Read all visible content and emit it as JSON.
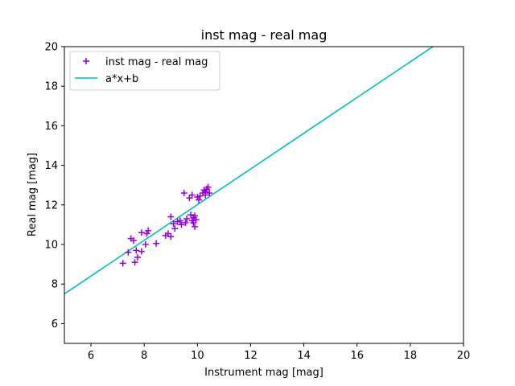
{
  "chart_data": {
    "type": "scatter",
    "title": "inst mag - real mag",
    "xlabel": "Instrument mag [mag]",
    "ylabel": "Real mag [mag]",
    "xlim": [
      5,
      20
    ],
    "ylim": [
      5,
      20
    ],
    "xticks": [
      6,
      8,
      10,
      12,
      14,
      16,
      18,
      20
    ],
    "yticks": [
      6,
      8,
      10,
      12,
      14,
      16,
      18,
      20
    ],
    "grid": false,
    "legend_position": "top-left",
    "series": [
      {
        "name": "inst mag - real mag",
        "kind": "scatter",
        "marker": "plus",
        "color": "#9400d3",
        "points": [
          [
            7.2,
            9.05
          ],
          [
            7.4,
            9.6
          ],
          [
            7.5,
            10.3
          ],
          [
            7.6,
            10.2
          ],
          [
            7.65,
            9.1
          ],
          [
            7.7,
            9.7
          ],
          [
            7.75,
            9.35
          ],
          [
            7.9,
            10.6
          ],
          [
            7.9,
            9.65
          ],
          [
            8.05,
            10.0
          ],
          [
            8.1,
            10.55
          ],
          [
            8.15,
            10.7
          ],
          [
            8.45,
            10.05
          ],
          [
            8.8,
            10.45
          ],
          [
            8.9,
            10.55
          ],
          [
            9.0,
            11.4
          ],
          [
            9.0,
            10.4
          ],
          [
            9.1,
            11.05
          ],
          [
            9.15,
            10.8
          ],
          [
            9.25,
            11.15
          ],
          [
            9.35,
            11.2
          ],
          [
            9.4,
            11.0
          ],
          [
            9.5,
            12.6
          ],
          [
            9.55,
            11.1
          ],
          [
            9.6,
            11.3
          ],
          [
            9.7,
            12.35
          ],
          [
            9.75,
            11.5
          ],
          [
            9.8,
            11.2
          ],
          [
            9.8,
            12.5
          ],
          [
            9.85,
            11.35
          ],
          [
            9.85,
            11.1
          ],
          [
            9.9,
            11.45
          ],
          [
            9.9,
            10.9
          ],
          [
            9.95,
            11.25
          ],
          [
            10.0,
            12.4
          ],
          [
            10.05,
            12.25
          ],
          [
            10.1,
            12.45
          ],
          [
            10.2,
            12.6
          ],
          [
            10.25,
            12.75
          ],
          [
            10.3,
            12.5
          ],
          [
            10.35,
            12.8
          ],
          [
            10.4,
            12.9
          ],
          [
            10.45,
            12.6
          ],
          [
            10.3,
            12.65
          ]
        ]
      },
      {
        "name": "a*x+b",
        "kind": "line",
        "color": "#00bfbf",
        "x": [
          5,
          18.85
        ],
        "y": [
          7.5,
          20
        ]
      }
    ]
  }
}
